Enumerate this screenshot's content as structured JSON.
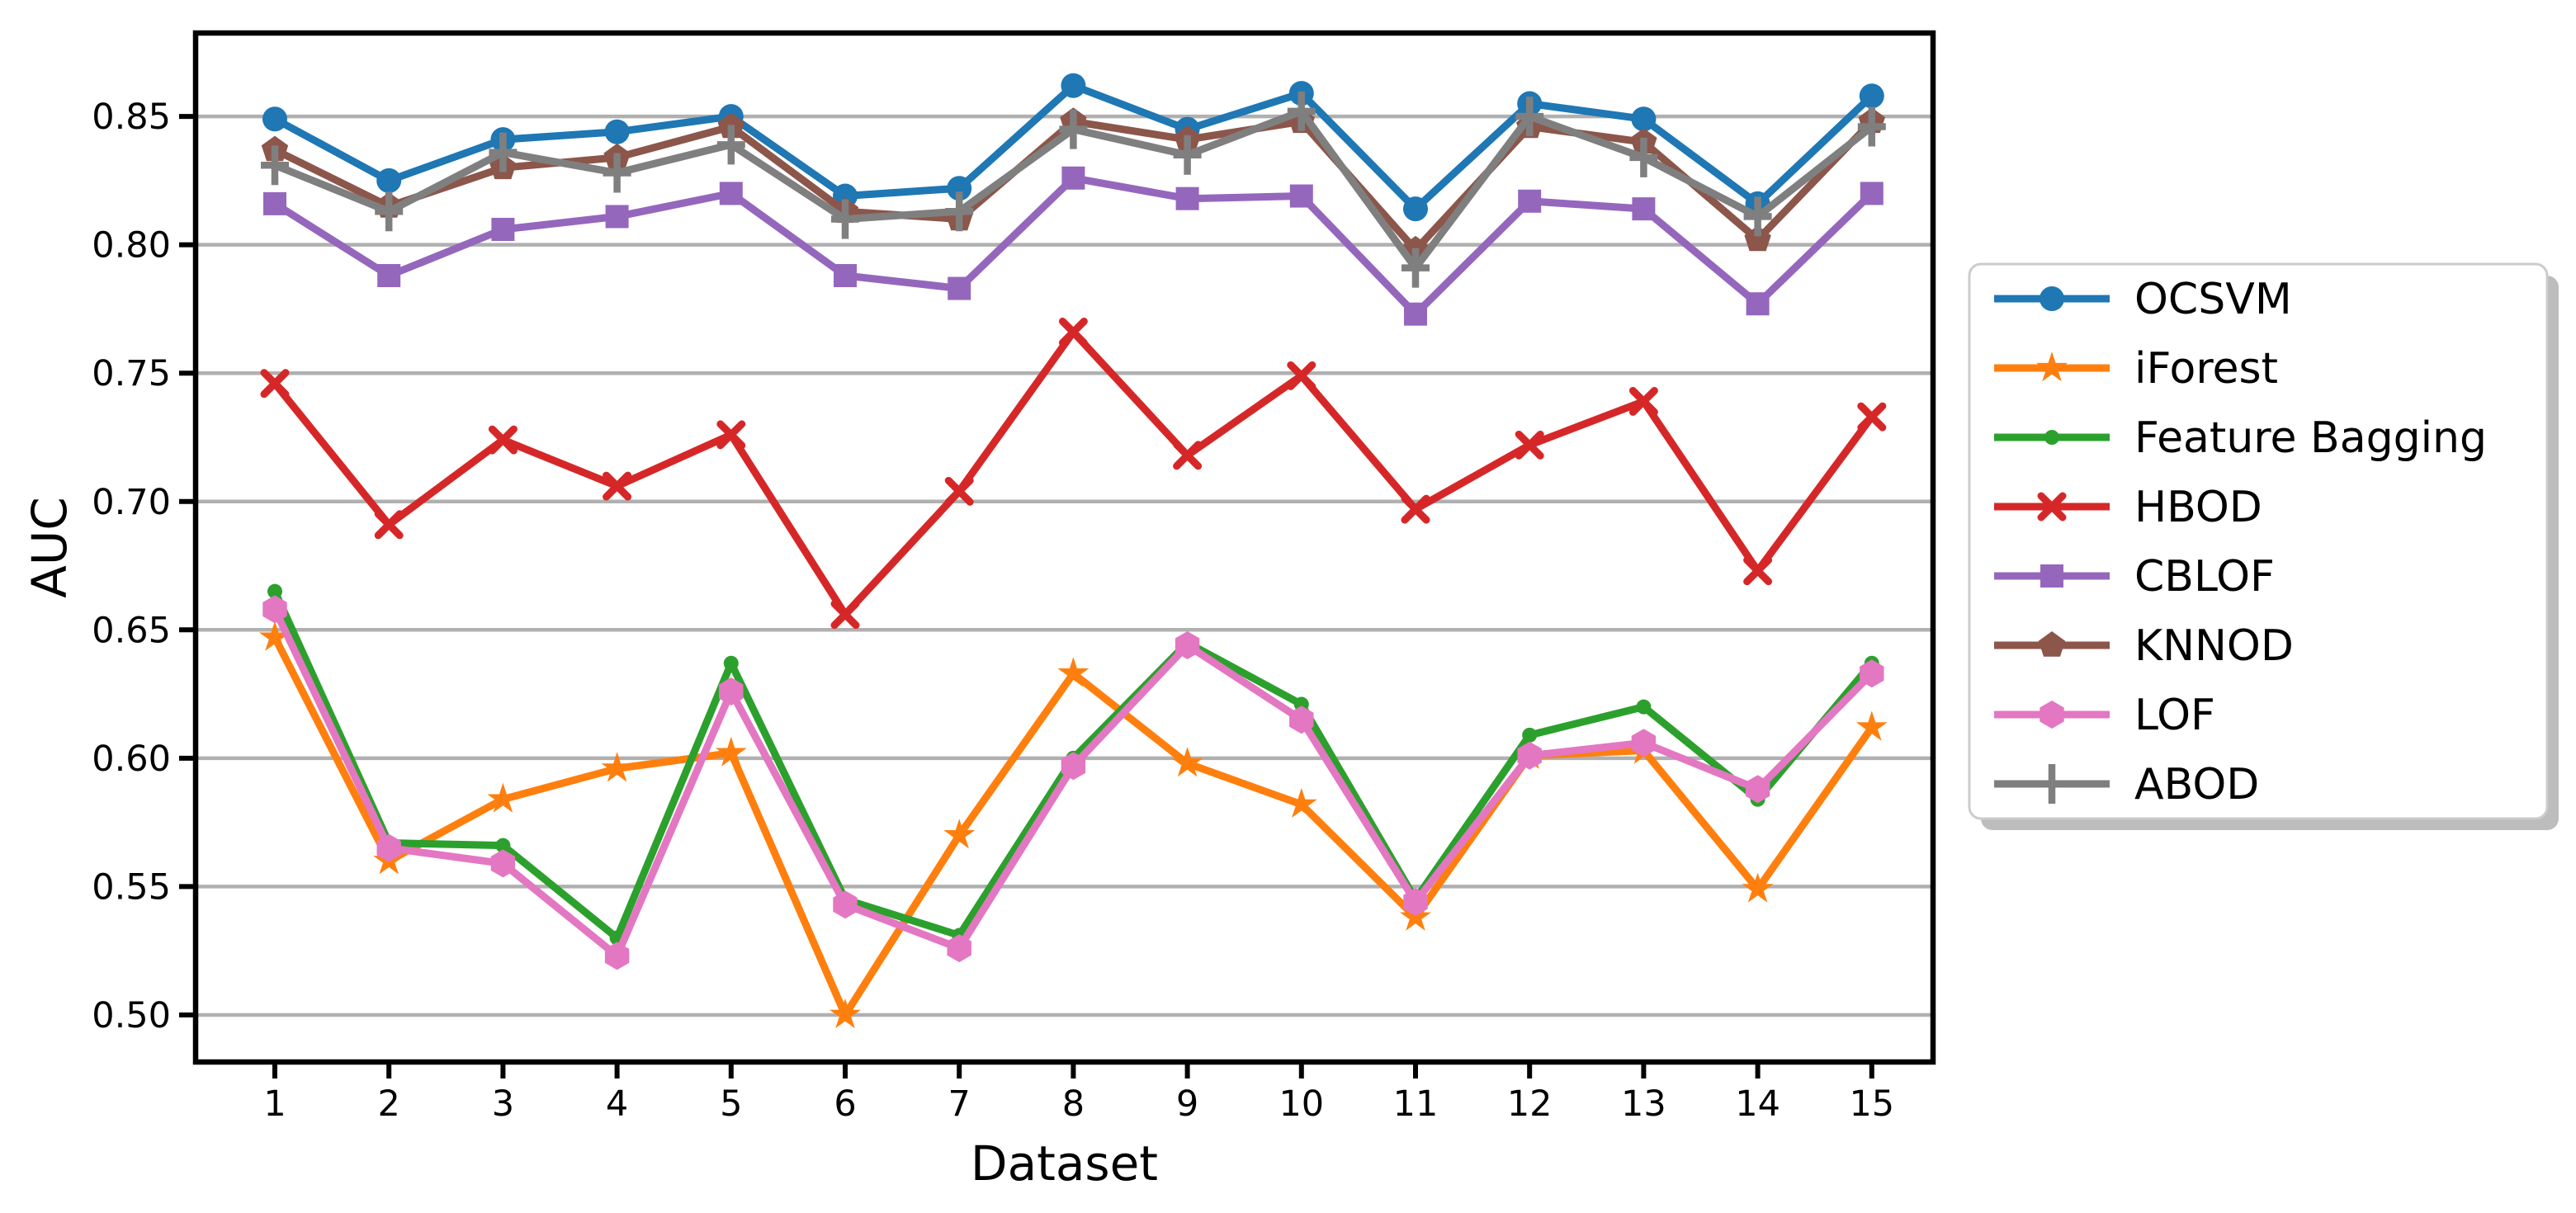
{
  "chart_data": {
    "type": "line",
    "title": "",
    "xlabel": "Dataset",
    "ylabel": "AUC",
    "x": [
      1,
      2,
      3,
      4,
      5,
      6,
      7,
      8,
      9,
      10,
      11,
      12,
      13,
      14,
      15
    ],
    "ylim": [
      0.482,
      0.8825
    ],
    "yticks": [
      0.5,
      0.55,
      0.6,
      0.65,
      0.7,
      0.75,
      0.8,
      0.85
    ],
    "grid": "horizontal",
    "grid_color": "#b0b0b0",
    "legend_position": "right-outside",
    "series": [
      {
        "name": "OCSVM",
        "color": "#1f77b4",
        "marker": "circle",
        "values": [
          0.849,
          0.825,
          0.841,
          0.844,
          0.85,
          0.819,
          0.822,
          0.862,
          0.845,
          0.859,
          0.814,
          0.855,
          0.849,
          0.816,
          0.858
        ]
      },
      {
        "name": "iForest",
        "color": "#ff7f0e",
        "marker": "star",
        "values": [
          0.647,
          0.56,
          0.584,
          0.596,
          0.602,
          0.5,
          0.57,
          0.633,
          0.598,
          0.582,
          0.538,
          0.601,
          0.603,
          0.549,
          0.612
        ]
      },
      {
        "name": "Feature Bagging",
        "color": "#2ca02c",
        "marker": "dot",
        "values": [
          0.665,
          0.567,
          0.566,
          0.53,
          0.637,
          0.545,
          0.531,
          0.6,
          0.645,
          0.621,
          0.545,
          0.609,
          0.62,
          0.584,
          0.637
        ]
      },
      {
        "name": "HBOD",
        "color": "#d62728",
        "marker": "x",
        "values": [
          0.746,
          0.691,
          0.724,
          0.706,
          0.726,
          0.656,
          0.704,
          0.766,
          0.718,
          0.749,
          0.697,
          0.722,
          0.739,
          0.673,
          0.733
        ]
      },
      {
        "name": "CBLOF",
        "color": "#9467bd",
        "marker": "square",
        "values": [
          0.816,
          0.788,
          0.806,
          0.811,
          0.82,
          0.788,
          0.783,
          0.826,
          0.818,
          0.819,
          0.773,
          0.817,
          0.814,
          0.777,
          0.82
        ]
      },
      {
        "name": "KNNOD",
        "color": "#8c564b",
        "marker": "pentagon",
        "values": [
          0.837,
          0.815,
          0.83,
          0.834,
          0.846,
          0.813,
          0.81,
          0.848,
          0.841,
          0.848,
          0.798,
          0.846,
          0.84,
          0.802,
          0.848
        ]
      },
      {
        "name": "LOF",
        "color": "#e377c2",
        "marker": "hexagon",
        "values": [
          0.658,
          0.565,
          0.559,
          0.523,
          0.626,
          0.543,
          0.526,
          0.597,
          0.644,
          0.615,
          0.544,
          0.601,
          0.606,
          0.588,
          0.633
        ]
      },
      {
        "name": "ABOD",
        "color": "#7f7f7f",
        "marker": "plus",
        "values": [
          0.831,
          0.813,
          0.836,
          0.828,
          0.839,
          0.81,
          0.813,
          0.845,
          0.835,
          0.852,
          0.791,
          0.85,
          0.834,
          0.811,
          0.846
        ]
      }
    ]
  },
  "axis": {
    "xlabel": "Dataset",
    "ylabel": "AUC",
    "xticks": [
      "1",
      "2",
      "3",
      "4",
      "5",
      "6",
      "7",
      "8",
      "9",
      "10",
      "11",
      "12",
      "13",
      "14",
      "15"
    ],
    "yticks": [
      "0.50",
      "0.55",
      "0.60",
      "0.65",
      "0.70",
      "0.75",
      "0.80",
      "0.85"
    ]
  },
  "legend": {
    "items": [
      "OCSVM",
      "iForest",
      "Feature Bagging",
      "HBOD",
      "CBLOF",
      "KNNOD",
      "LOF",
      "ABOD"
    ]
  },
  "style": {
    "background": "#ffffff",
    "spine_color": "#000000",
    "legend_border": "#cccccc",
    "legend_shadow": "#bdbdbd"
  }
}
